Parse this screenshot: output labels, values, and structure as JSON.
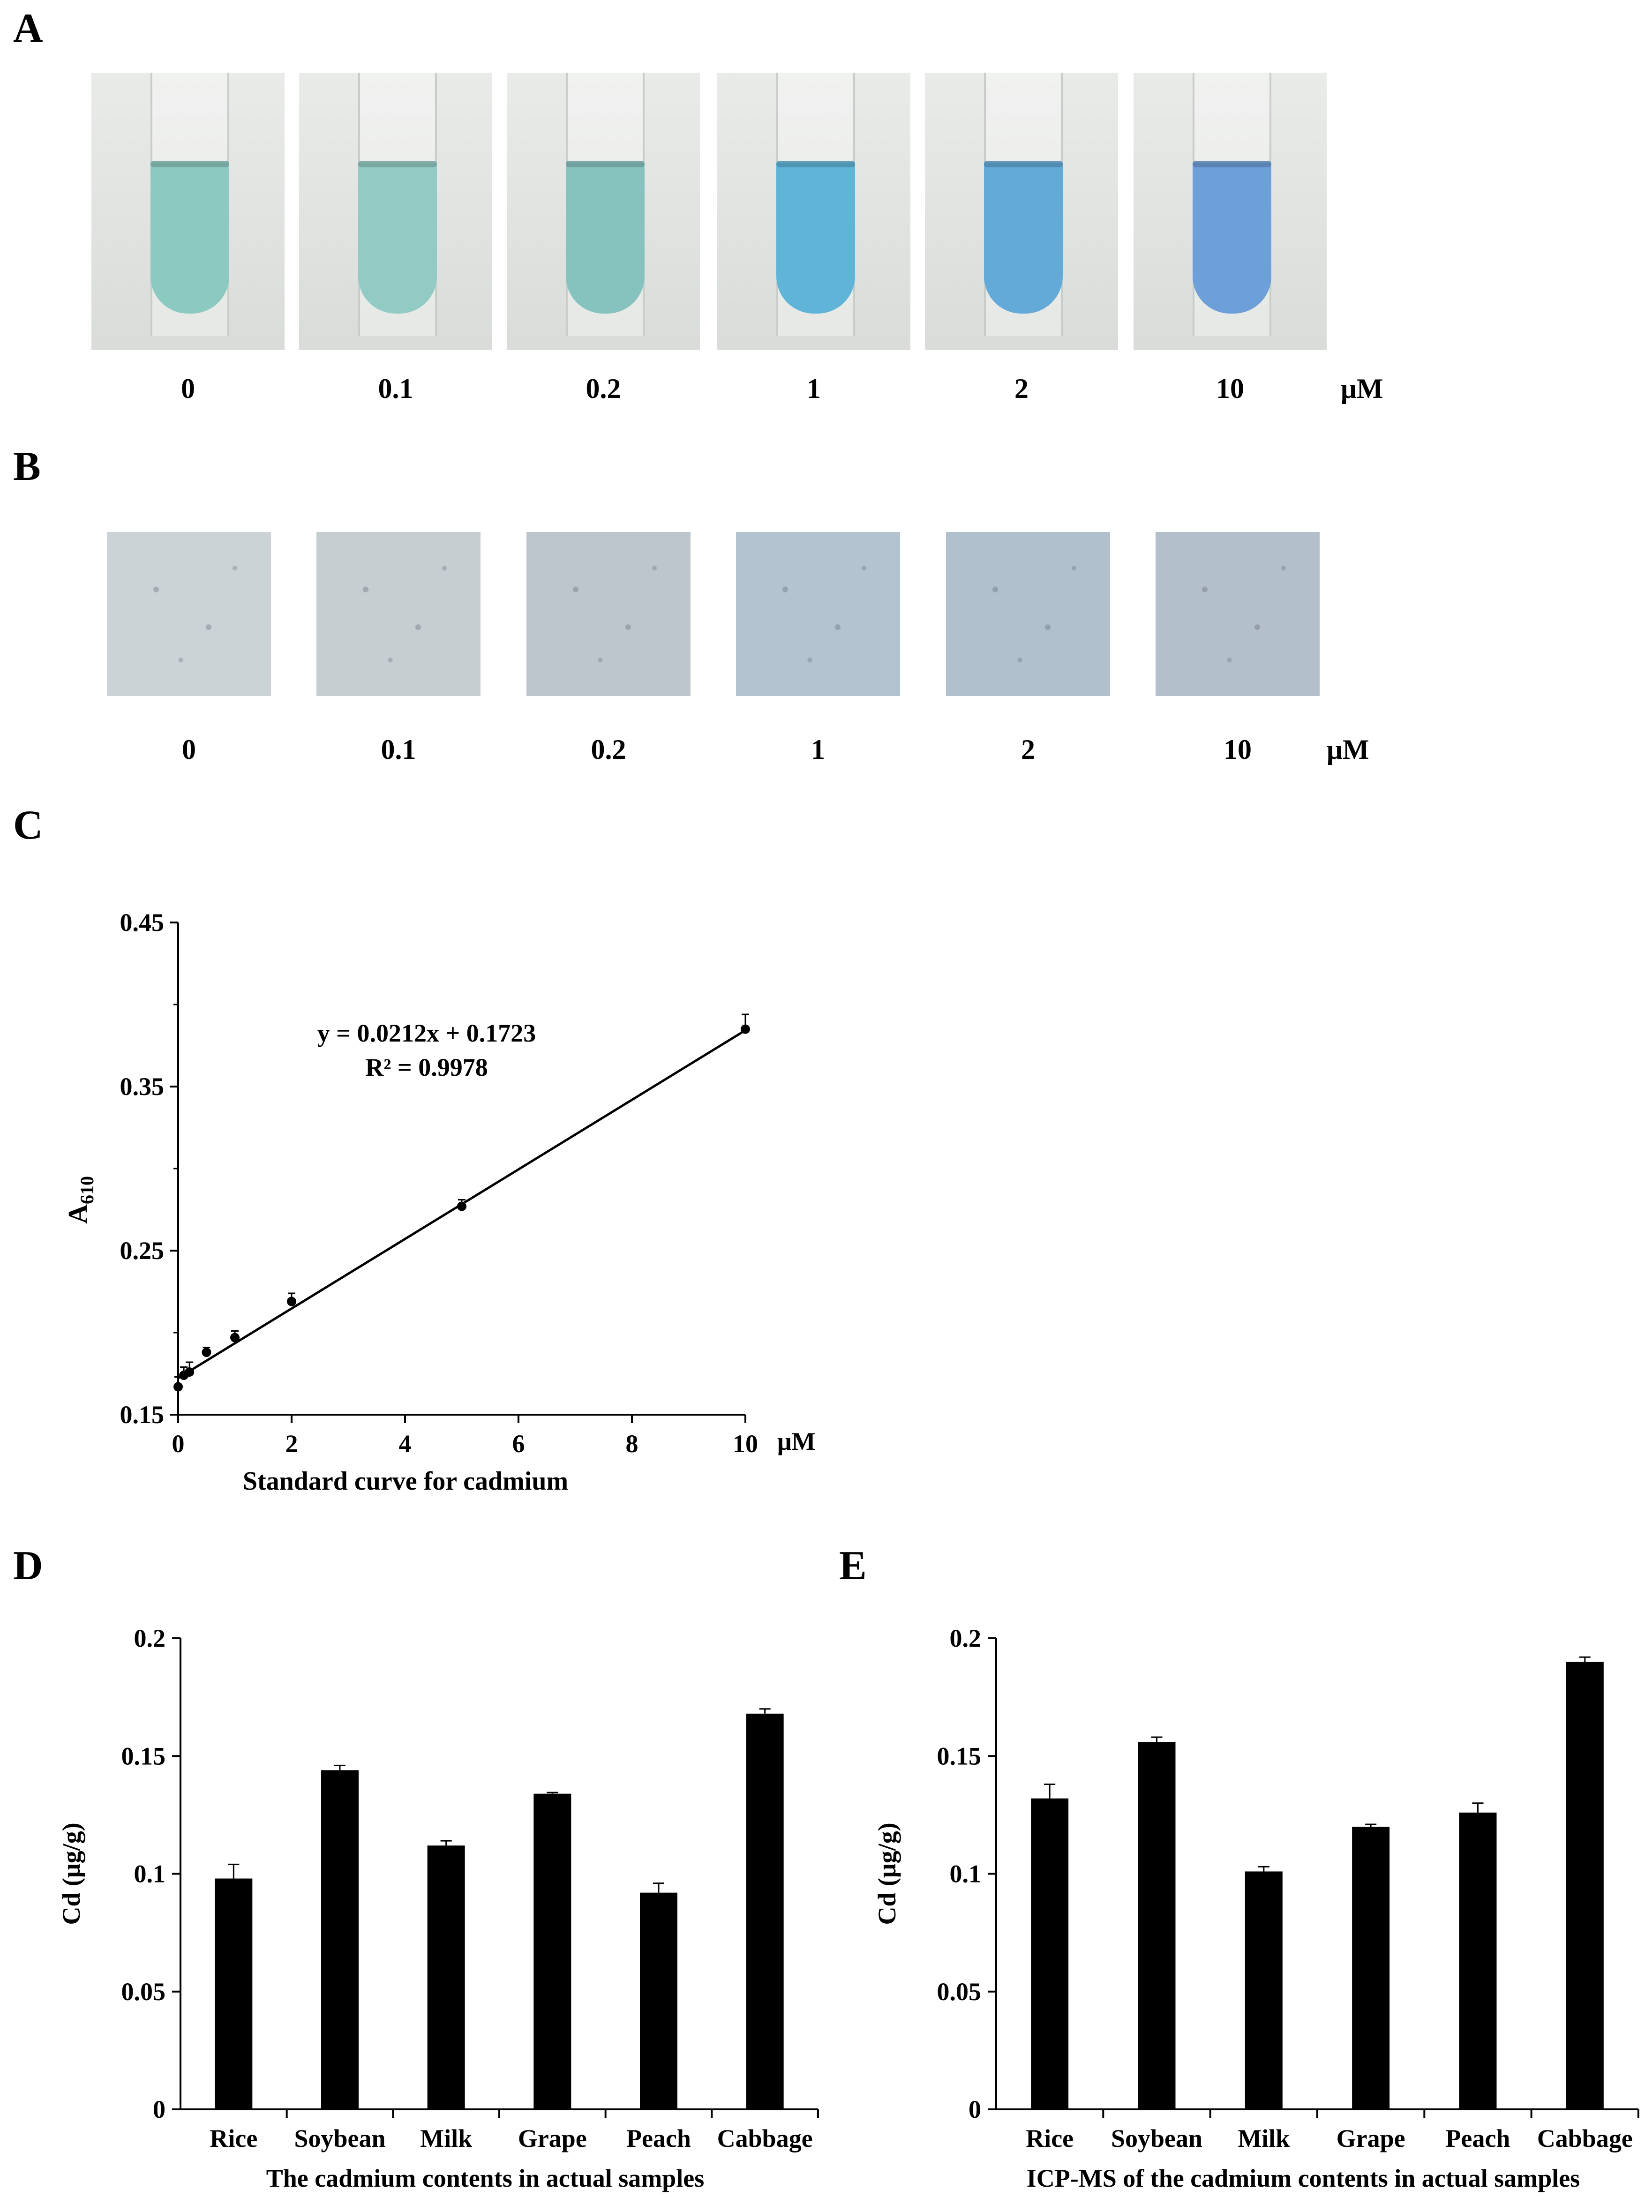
{
  "panels": {
    "A": "A",
    "B": "B",
    "C": "C",
    "D": "D",
    "E": "E"
  },
  "tubes": {
    "concentrations": [
      "0",
      "0.1",
      "0.2",
      "1",
      "2",
      "10"
    ],
    "unit": "μM",
    "colors": [
      "#8cc9c1",
      "#92cbc4",
      "#86c3bf",
      "#5fb4d8",
      "#64aad9",
      "#6d9fd9"
    ]
  },
  "strips": {
    "concentrations": [
      "0",
      "0.1",
      "0.2",
      "1",
      "2",
      "10"
    ],
    "unit": "μM",
    "colors": [
      "#ccd3d6",
      "#c6ced1",
      "#bcc6cc",
      "#b3c3cf",
      "#b0c0cc",
      "#b3bfcb"
    ]
  },
  "chart_data": [
    {
      "id": "C",
      "type": "scatter",
      "xlabel": "Standard  curve  for  cadmium",
      "ylabel": "A",
      "ylabel_sub": "610",
      "x_unit": "μM",
      "xlim": [
        0,
        10
      ],
      "ylim": [
        0.15,
        0.45
      ],
      "xticks": [
        "0",
        "2",
        "4",
        "6",
        "8",
        "10"
      ],
      "yticks": [
        "0.15",
        "0.25",
        "0.35",
        "0.45"
      ],
      "points": [
        {
          "x": 0,
          "y": 0.167,
          "err": 0.006
        },
        {
          "x": 0.1,
          "y": 0.174,
          "err": 0.005
        },
        {
          "x": 0.2,
          "y": 0.176,
          "err": 0.006
        },
        {
          "x": 0.5,
          "y": 0.188,
          "err": 0.003
        },
        {
          "x": 1,
          "y": 0.197,
          "err": 0.004
        },
        {
          "x": 2,
          "y": 0.219,
          "err": 0.005
        },
        {
          "x": 5,
          "y": 0.277,
          "err": 0.004
        },
        {
          "x": 10,
          "y": 0.385,
          "err": 0.009
        }
      ],
      "fit": {
        "slope": 0.0212,
        "intercept": 0.1723
      },
      "equation": "y = 0.0212x + 0.1723",
      "r2": "R² = 0.9978"
    },
    {
      "id": "D",
      "type": "bar",
      "title": "The cadmium contents in actual samples",
      "ylabel": "Cd (μg/g)",
      "ylim": [
        0,
        0.2
      ],
      "yticks": [
        "0",
        "0.05",
        "0.1",
        "0.15",
        "0.2"
      ],
      "categories": [
        "Rice",
        "Soybean",
        "Milk",
        "Grape",
        "Peach",
        "Cabbage"
      ],
      "values": [
        0.098,
        0.144,
        0.112,
        0.134,
        0.092,
        0.168
      ],
      "errors": [
        0.006,
        0.002,
        0.002,
        0.0005,
        0.004,
        0.002
      ]
    },
    {
      "id": "E",
      "type": "bar",
      "title": "ICP-MS of the cadmium contents in actual samples",
      "ylabel": "Cd (μg/g)",
      "ylim": [
        0,
        0.2
      ],
      "yticks": [
        "0",
        "0.05",
        "0.1",
        "0.15",
        "0.2"
      ],
      "categories": [
        "Rice",
        "Soybean",
        "Milk",
        "Grape",
        "Peach",
        "Cabbage"
      ],
      "values": [
        0.132,
        0.156,
        0.101,
        0.12,
        0.126,
        0.19
      ],
      "errors": [
        0.006,
        0.002,
        0.002,
        0.001,
        0.004,
        0.002
      ]
    }
  ]
}
